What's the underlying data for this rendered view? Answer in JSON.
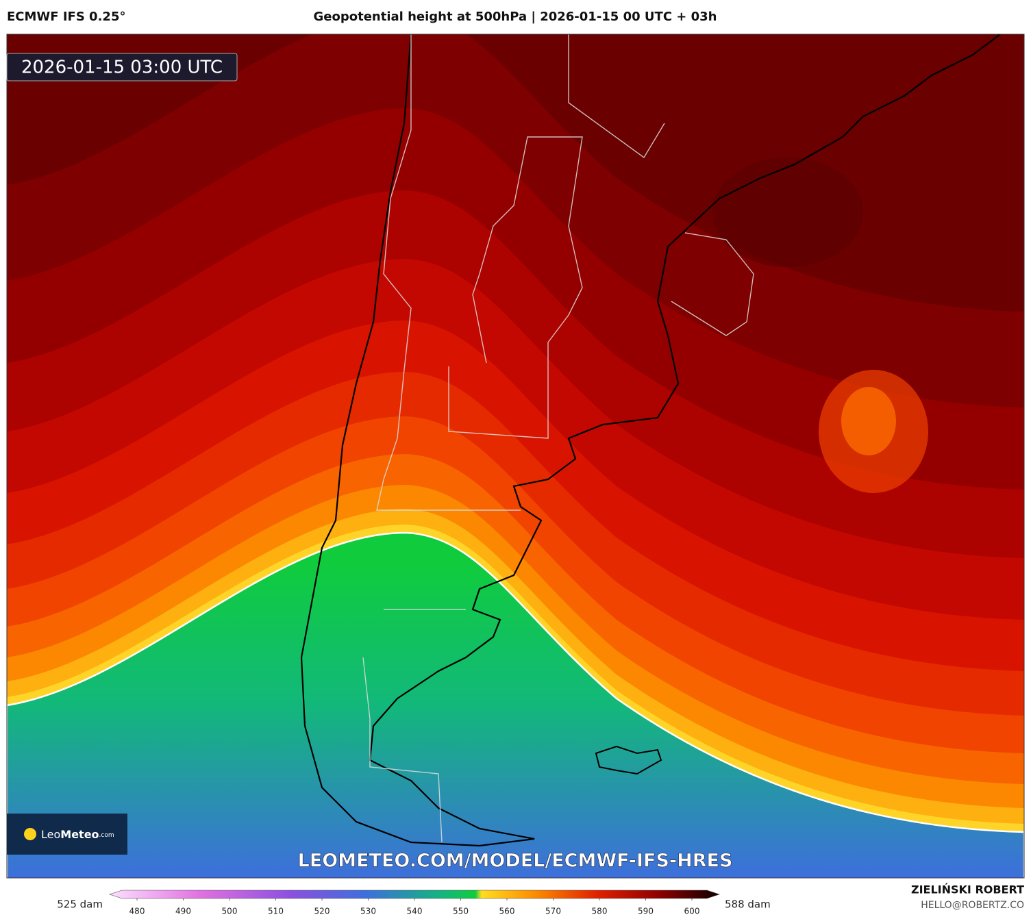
{
  "header": {
    "model": "ECMWF IFS 0.25°",
    "title": "Geopotential height at 500hPa | 2026-01-15 00 UTC + 03h"
  },
  "map": {
    "timestamp": "2026-01-15 03:00 UTC",
    "logo": [
      "Leo",
      "Meteo",
      ".com"
    ],
    "watermark": "LEOMETEO.COM/MODEL/ECMWF-IFS-HRES"
  },
  "colorbar": {
    "min_label": "525 dam",
    "max_label": "588 dam",
    "ticks": [
      480,
      490,
      500,
      510,
      520,
      530,
      540,
      550,
      560,
      570,
      580,
      590,
      600
    ]
  },
  "footer": {
    "author": "ZIELIŃSKI ROBERT",
    "email": "HELLO@ROBERTZ.CO"
  }
}
